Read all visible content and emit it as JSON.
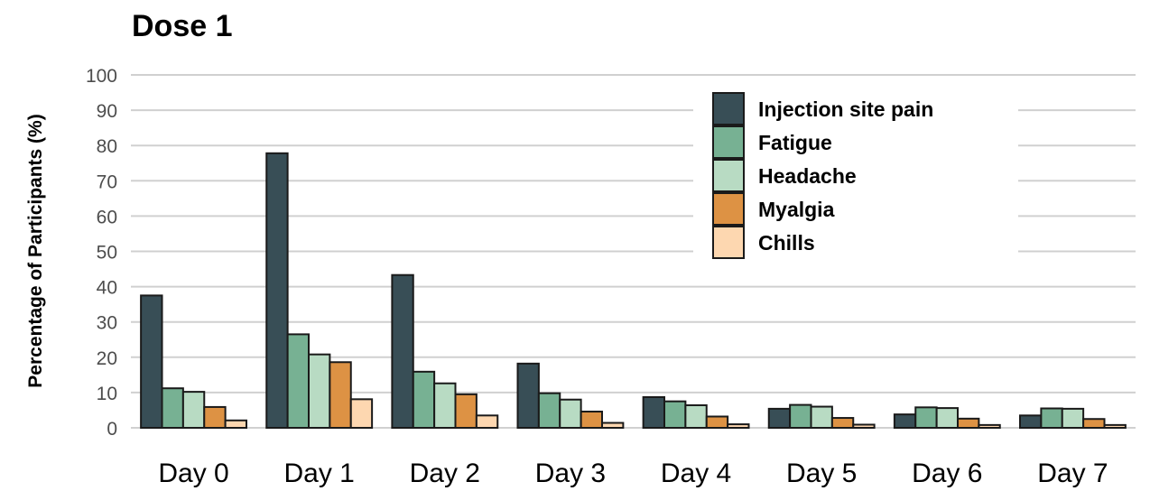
{
  "chart_data": {
    "type": "bar",
    "title": "Dose 1",
    "xlabel": "",
    "ylabel": "Percentage of  Participants (%)",
    "ylim": [
      0,
      100
    ],
    "yticks": [
      "0",
      "10",
      "20",
      "30",
      "40",
      "50",
      "60",
      "70",
      "80",
      "90",
      "100"
    ],
    "grid": true,
    "legend_position": "top-right",
    "categories": [
      "Day 0",
      "Day 1",
      "Day 2",
      "Day 3",
      "Day 4",
      "Day 5",
      "Day 6",
      "Day 7"
    ],
    "series": [
      {
        "name": "Injection site pain",
        "color": "#384e56",
        "values": [
          37.5,
          77.8,
          43.3,
          18.2,
          8.7,
          5.4,
          3.8,
          3.5
        ]
      },
      {
        "name": "Fatigue",
        "color": "#77b193",
        "values": [
          11.2,
          26.5,
          15.9,
          9.8,
          7.5,
          6.5,
          5.8,
          5.5
        ]
      },
      {
        "name": "Headache",
        "color": "#b8dbc3",
        "values": [
          10.2,
          20.8,
          12.6,
          8.0,
          6.4,
          6.0,
          5.6,
          5.4
        ]
      },
      {
        "name": "Myalgia",
        "color": "#dd9244",
        "values": [
          5.9,
          18.6,
          9.5,
          4.6,
          3.2,
          2.8,
          2.6,
          2.5
        ]
      },
      {
        "name": "Chills",
        "color": "#fdd7b0",
        "values": [
          2.1,
          8.1,
          3.5,
          1.4,
          1.0,
          0.9,
          0.8,
          0.8
        ]
      }
    ]
  }
}
